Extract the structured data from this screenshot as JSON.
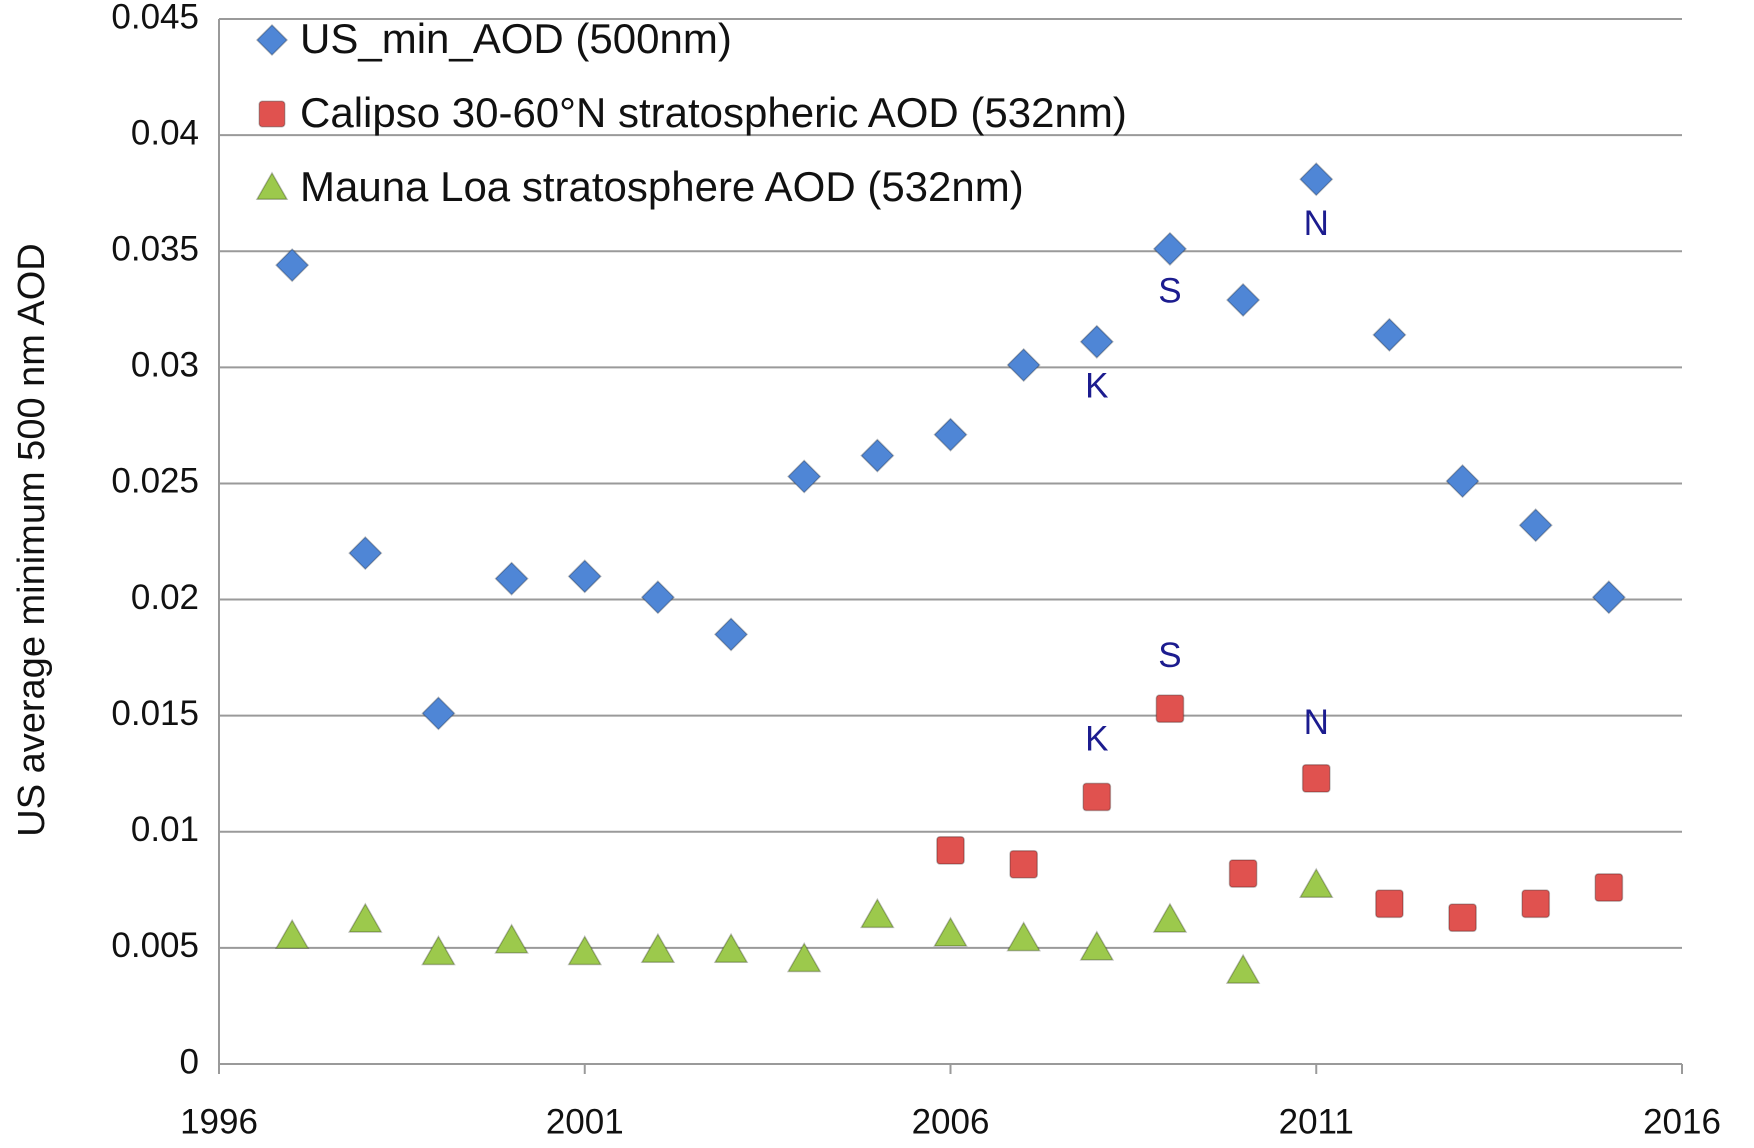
{
  "chart_data": {
    "type": "scatter",
    "ylabel": "US average minimum 500 nm AOD",
    "xlim": [
      1996,
      2016
    ],
    "xticks": [
      1996,
      2001,
      2006,
      2011,
      2016
    ],
    "ylim": [
      0,
      0.045
    ],
    "yticks": [
      0,
      0.005,
      0.01,
      0.015,
      0.02,
      0.025,
      0.03,
      0.035,
      0.04,
      0.045
    ],
    "grid": true,
    "legend": "upper left",
    "x": [
      1997,
      1998,
      1999,
      2000,
      2001,
      2002,
      2003,
      2004,
      2005,
      2006,
      2007,
      2008,
      2009,
      2010,
      2011,
      2012,
      2013,
      2014,
      2015
    ],
    "series": [
      {
        "name": "US_min_AOD (500nm)",
        "color": "#4f86d6",
        "marker": "diamond",
        "values": [
          0.0344,
          0.022,
          0.0151,
          0.0209,
          0.021,
          0.0201,
          0.0185,
          0.0253,
          0.0262,
          0.0271,
          0.0301,
          0.0311,
          0.0351,
          0.0329,
          0.0381,
          0.0314,
          0.0251,
          0.0232,
          0.0201
        ]
      },
      {
        "name": "Calipso 30-60°N stratospheric AOD (532nm)",
        "color": "#e0524f",
        "marker": "square",
        "values": [
          null,
          null,
          null,
          null,
          null,
          null,
          null,
          null,
          null,
          0.0092,
          0.0086,
          0.0115,
          0.0153,
          0.0082,
          0.0123,
          0.0069,
          0.0063,
          0.0069,
          0.0076
        ]
      },
      {
        "name": "Mauna Loa stratosphere AOD (532nm)",
        "color": "#9cc94c",
        "marker": "triangle",
        "values": [
          0.0055,
          0.0062,
          0.0048,
          0.0053,
          0.0048,
          0.0049,
          0.0049,
          0.0045,
          0.0064,
          0.0056,
          0.0054,
          0.005,
          0.0062,
          0.004,
          0.0077,
          null,
          null,
          null,
          null
        ]
      }
    ],
    "annotation_color": "#1c1c8f",
    "annotations": [
      {
        "text": "K",
        "x": 2008,
        "y": 0.0291
      },
      {
        "text": "S",
        "x": 2009,
        "y": 0.0332
      },
      {
        "text": "N",
        "x": 2011,
        "y": 0.0361
      },
      {
        "text": "K",
        "x": 2008,
        "y": 0.0139
      },
      {
        "text": "S",
        "x": 2009,
        "y": 0.0175
      },
      {
        "text": "N",
        "x": 2011,
        "y": 0.0146
      }
    ]
  }
}
